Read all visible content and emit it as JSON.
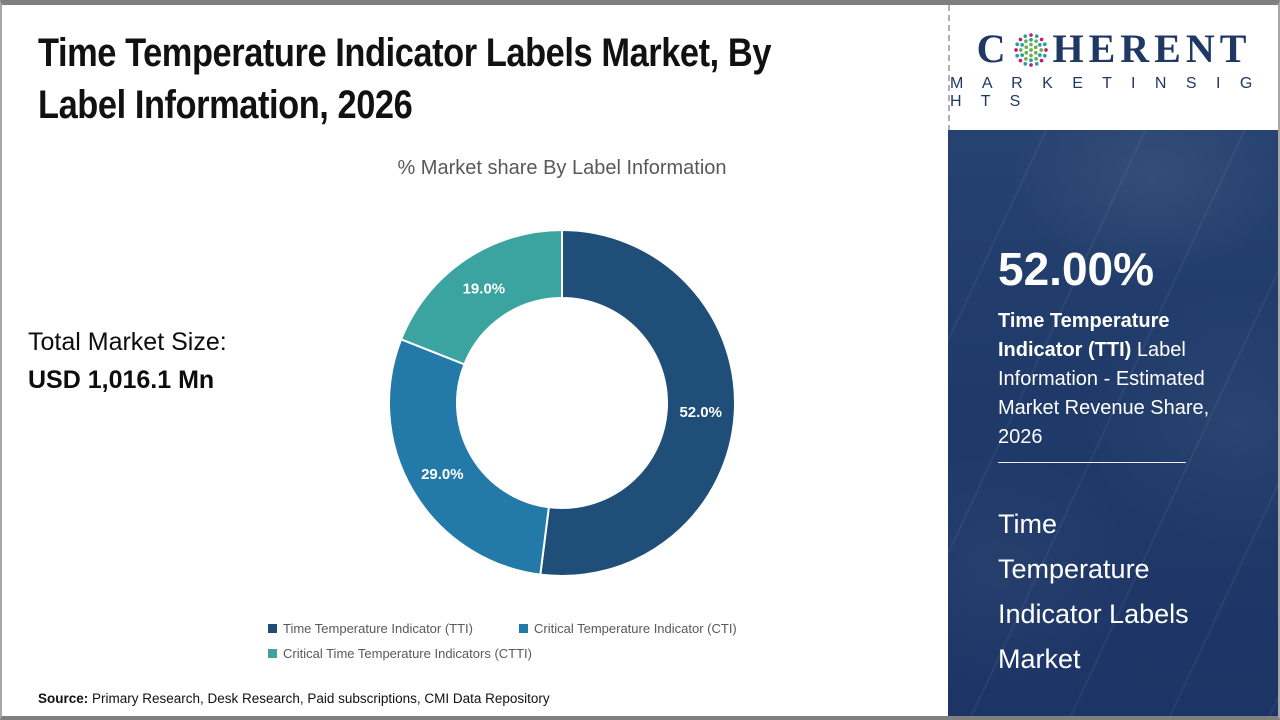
{
  "header": {
    "title": "Time Temperature Indicator Labels Market, By\nLabel Information, 2026"
  },
  "logo": {
    "brand_first": "C",
    "brand_rest": "HERENT",
    "tagline": "M A R K E T   I N S I G H T S",
    "color": "#1F3864",
    "globe_icon_colors": {
      "green": "#66B24A",
      "teal": "#2A9D9B",
      "magenta": "#C0206E"
    }
  },
  "main": {
    "subtitle": "% Market share By Label Information",
    "total_label": "Total Market Size:",
    "total_value": "USD 1,016.1 Mn",
    "source_label": "Source:",
    "source_text": " Primary Research, Desk Research, Paid subscriptions, CMI Data Repository"
  },
  "chart_data": {
    "type": "pie",
    "donut": true,
    "title": "% Market share By Label Information",
    "start_angle_deg": 0,
    "direction": "clockwise",
    "categories": [
      "Time Temperature Indicator (TTI)",
      "Critical Temperature Indicator (CTI)",
      "Critical Time Temperature Indicators (CTTI)"
    ],
    "values": [
      52.0,
      29.0,
      19.0
    ],
    "labels": [
      "52.0%",
      "29.0%",
      "19.0%"
    ],
    "colors": [
      "#1F4E79",
      "#2379A7",
      "#3BA3A0"
    ],
    "label_color": "#FFFFFF",
    "legend_position": "bottom"
  },
  "sidebar": {
    "headline_value": "52.00%",
    "desc_bold": "Time Temperature Indicator (TTI)",
    "desc_regular": " Label Information - Estimated Market Revenue Share, 2026",
    "footer_text": "Time\nTemperature\nIndicator Labels\nMarket",
    "bg_color": "#1F3A69"
  }
}
